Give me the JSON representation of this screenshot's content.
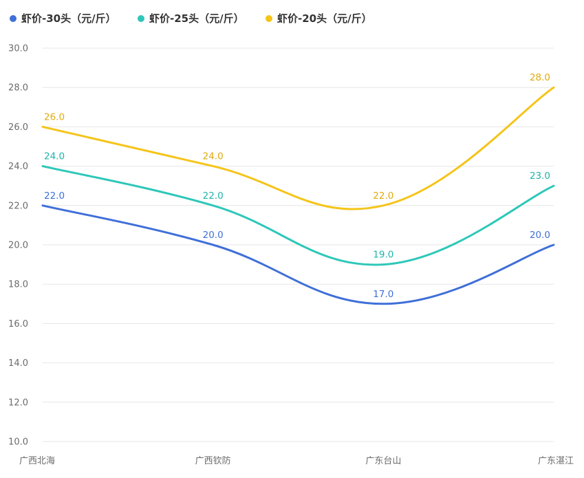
{
  "chart_data": {
    "type": "line",
    "categories": [
      "广西北海",
      "广西钦防",
      "广东台山",
      "广东湛江"
    ],
    "ylim": [
      10.0,
      30.0
    ],
    "yticks": [
      10.0,
      12.0,
      14.0,
      16.0,
      18.0,
      20.0,
      22.0,
      24.0,
      26.0,
      28.0,
      30.0
    ],
    "grid": true,
    "smooth": true,
    "legend_position": "top-left",
    "series": [
      {
        "name": "虾价-30头（元/斤）",
        "color": "#3f6fd8",
        "label_color": "#3f6fd8",
        "values": [
          22.0,
          20.0,
          17.0,
          20.0
        ]
      },
      {
        "name": "虾价-25头（元/斤）",
        "color": "#2ec7b9",
        "label_color": "#1fb4a7",
        "values": [
          24.0,
          22.0,
          19.0,
          23.0
        ]
      },
      {
        "name": "虾价-20头（元/斤）",
        "color": "#f5c419",
        "label_color": "#e0aa0c",
        "values": [
          26.0,
          24.0,
          22.0,
          28.0
        ]
      }
    ]
  }
}
